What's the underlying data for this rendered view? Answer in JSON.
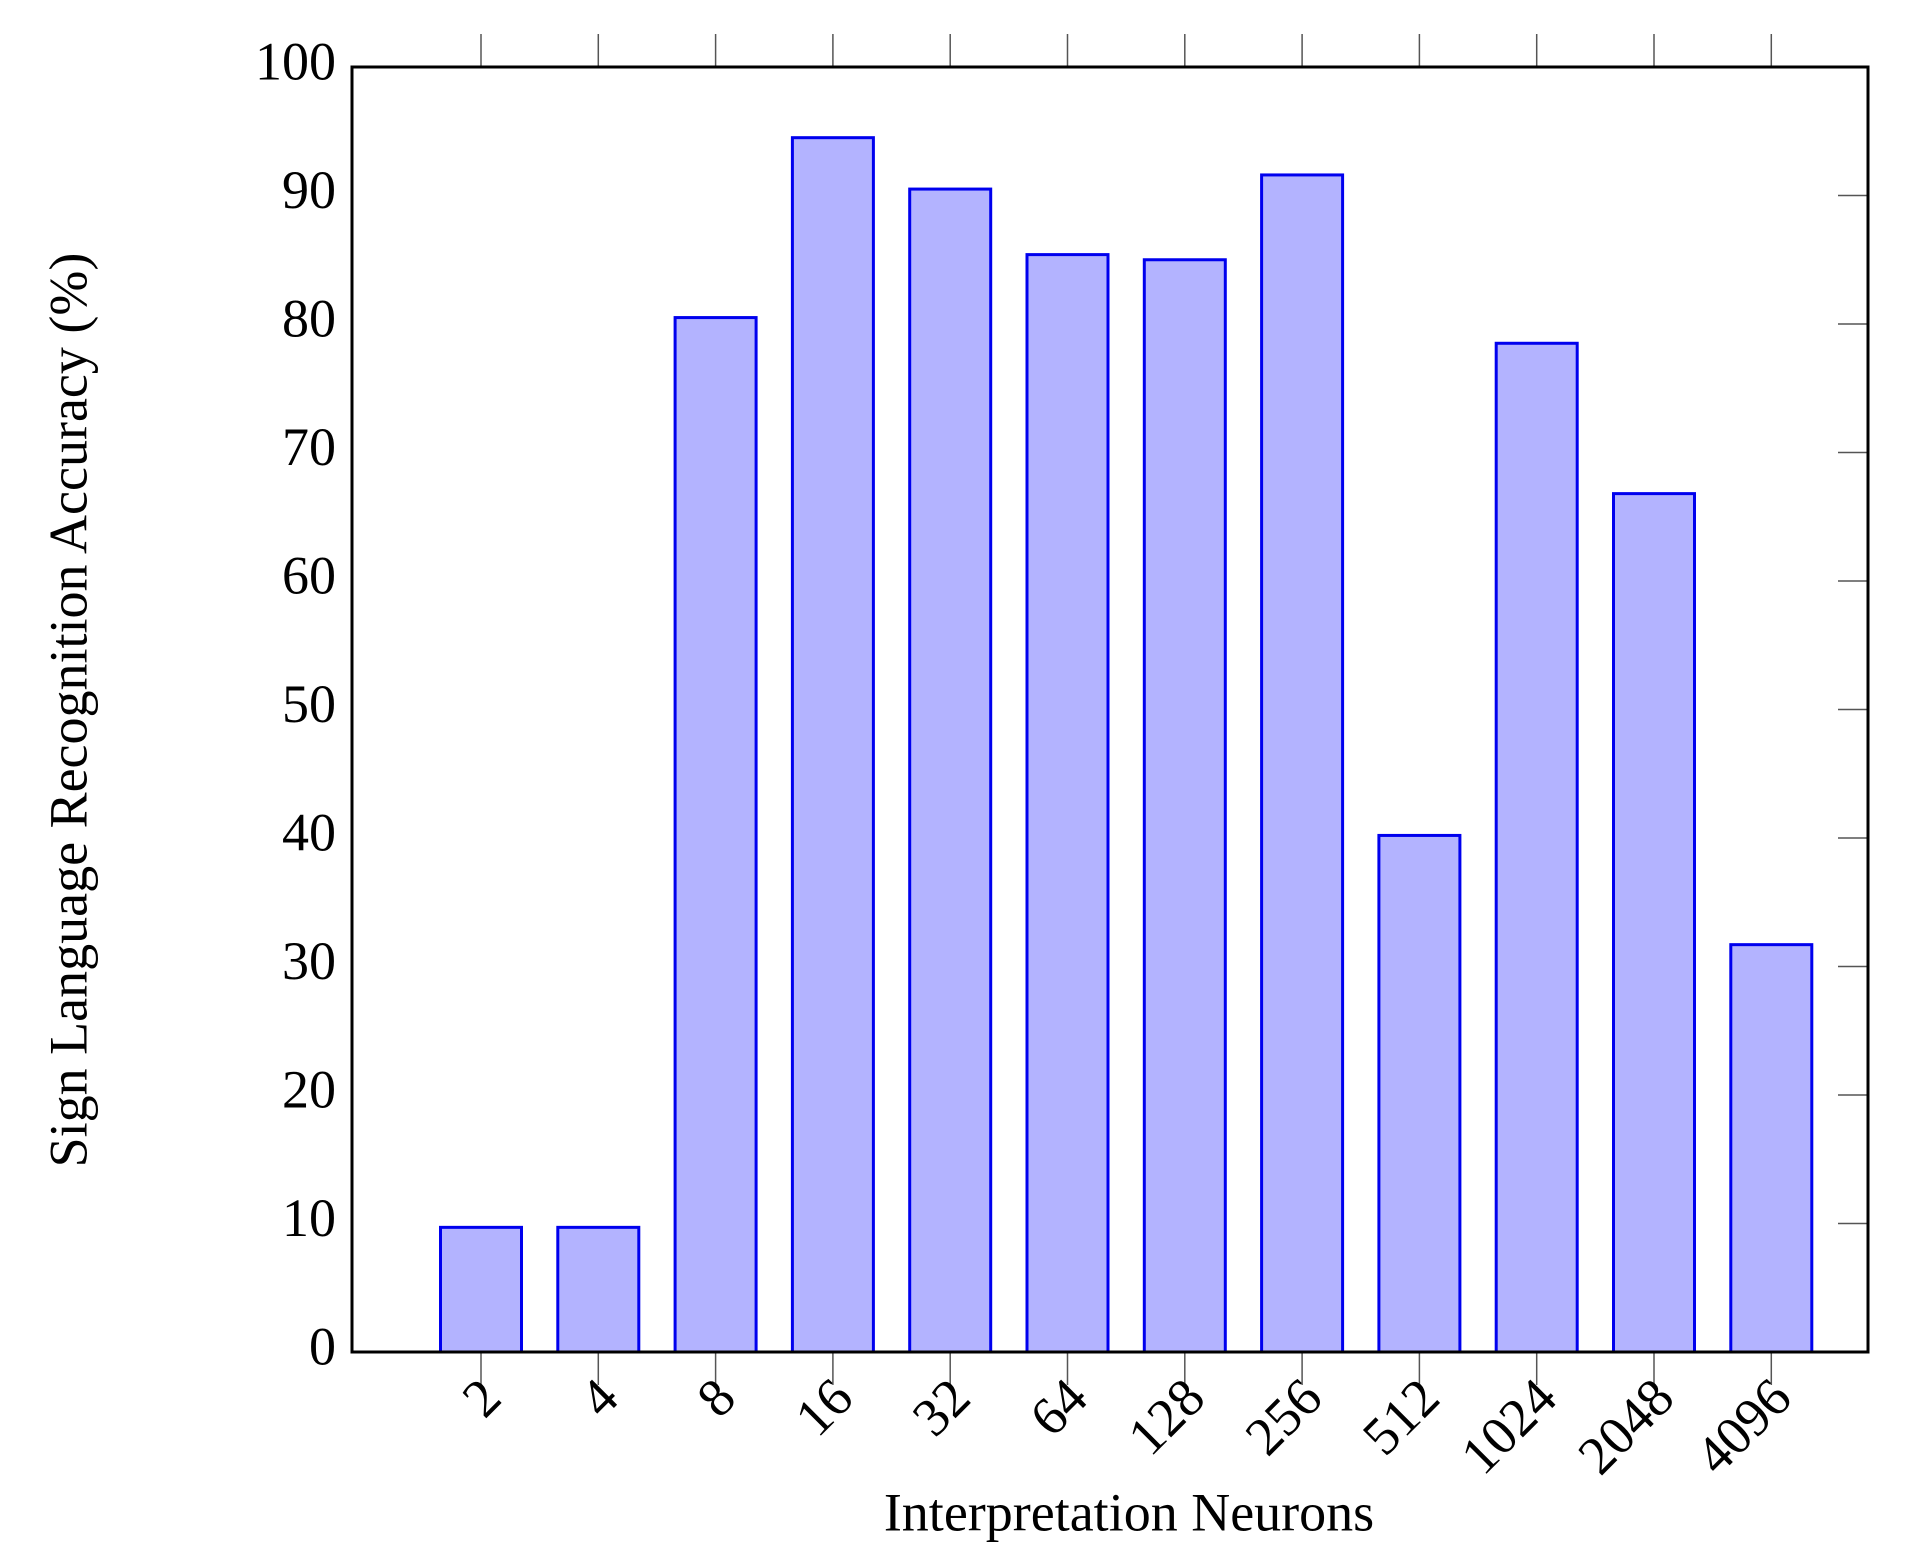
{
  "chart_data": {
    "type": "bar",
    "x_label": "Interpretation Neurons",
    "y_label": "Sign Language Recognition Accuracy (%)",
    "categories": [
      "2",
      "4",
      "8",
      "16",
      "32",
      "64",
      "128",
      "256",
      "512",
      "1024",
      "2048",
      "4096"
    ],
    "values": [
      9.7,
      9.7,
      80.5,
      94.5,
      90.5,
      85.4,
      85,
      91.6,
      40.2,
      78.5,
      66.8,
      31.7
    ],
    "color": "#b3b3ff",
    "edge_color": "#0000ee",
    "ylim": [
      0,
      100
    ],
    "yticks": [
      0,
      10,
      20,
      30,
      40,
      50,
      60,
      70,
      80,
      90,
      100
    ]
  }
}
